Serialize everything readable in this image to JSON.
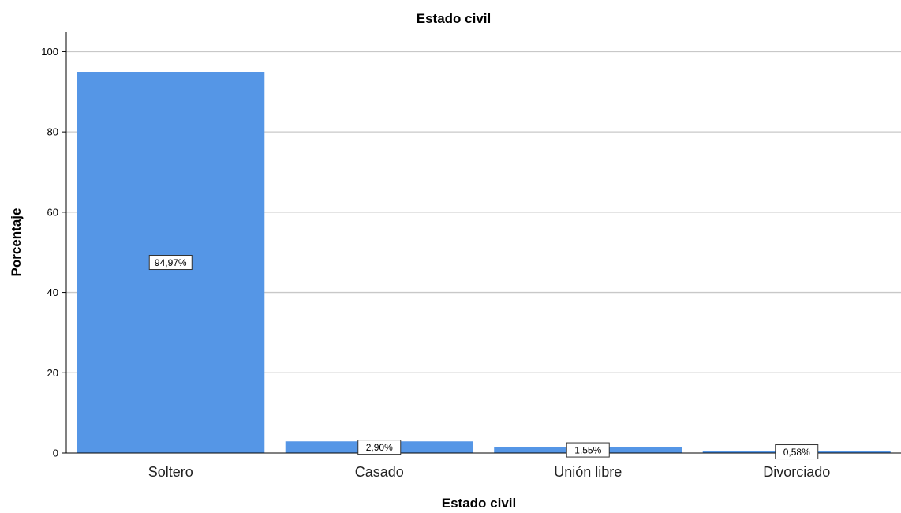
{
  "chart_data": {
    "type": "bar",
    "title": "Estado civil",
    "xlabel": "Estado civil",
    "ylabel": "Porcentaje",
    "categories": [
      "Soltero",
      "Casado",
      "Unión libre",
      "Divorciado"
    ],
    "values": [
      94.97,
      2.9,
      1.55,
      0.58
    ],
    "data_labels": [
      "94,97%",
      "2,90%",
      "1,55%",
      "0,58%"
    ],
    "yticks": [
      "0",
      "20",
      "40",
      "60",
      "80",
      "100"
    ],
    "ylim": [
      0,
      105
    ],
    "grid": true,
    "bar_color": "#5596e6",
    "grid_color": "#c8c8c8"
  }
}
